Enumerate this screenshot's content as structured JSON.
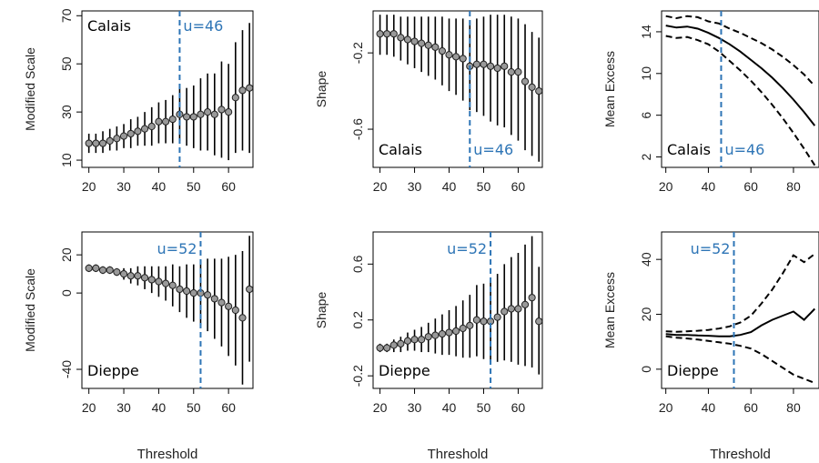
{
  "colors": {
    "threshold_line": "#2E75B6",
    "threshold_label": "#2E75B6",
    "marks": "#000000",
    "point_fill": "#999999"
  },
  "x_axis_label": "Threshold",
  "chart_data": [
    {
      "type": "scatter",
      "panel": "top-left",
      "site": "Calais",
      "ylabel": "Modified Scale",
      "xlim": [
        18,
        67
      ],
      "ylim": [
        7,
        72
      ],
      "xticks": [
        20,
        30,
        40,
        50,
        60
      ],
      "yticks": [
        10,
        30,
        50,
        70
      ],
      "threshold": 46,
      "threshold_label": "u=46",
      "x": [
        20,
        22,
        24,
        26,
        28,
        30,
        32,
        34,
        36,
        38,
        40,
        42,
        44,
        46,
        48,
        50,
        52,
        54,
        56,
        58,
        60,
        62,
        64,
        66
      ],
      "y": [
        17,
        17,
        17,
        18,
        19,
        20,
        21,
        22,
        23,
        24,
        26,
        26,
        27,
        29,
        28,
        28,
        29,
        30,
        29,
        31,
        30,
        36,
        39,
        40
      ],
      "lower": [
        13,
        13,
        13,
        14,
        14,
        15,
        15,
        16,
        16,
        16,
        17,
        17,
        17,
        18,
        16,
        15,
        14,
        14,
        12,
        11,
        10,
        13,
        14,
        13
      ],
      "upper": [
        21,
        21,
        22,
        23,
        24,
        25,
        27,
        28,
        30,
        32,
        34,
        35,
        37,
        40,
        40,
        41,
        44,
        46,
        46,
        51,
        50,
        59,
        64,
        67
      ]
    },
    {
      "type": "scatter",
      "panel": "top-middle",
      "site": "Calais",
      "ylabel": "Shape",
      "xlim": [
        18,
        67
      ],
      "ylim": [
        -0.8,
        0.02
      ],
      "xticks": [
        20,
        30,
        40,
        50,
        60
      ],
      "yticks": [
        -0.6,
        -0.2
      ],
      "threshold": 46,
      "threshold_label": "u=46",
      "x": [
        20,
        22,
        24,
        26,
        28,
        30,
        32,
        34,
        36,
        38,
        40,
        42,
        44,
        46,
        48,
        50,
        52,
        54,
        56,
        58,
        60,
        62,
        64,
        66
      ],
      "y": [
        -0.1,
        -0.1,
        -0.1,
        -0.12,
        -0.13,
        -0.14,
        -0.15,
        -0.16,
        -0.17,
        -0.19,
        -0.21,
        -0.22,
        -0.23,
        -0.27,
        -0.26,
        -0.26,
        -0.27,
        -0.28,
        -0.27,
        -0.3,
        -0.3,
        -0.35,
        -0.38,
        -0.4
      ],
      "lower": [
        -0.21,
        -0.21,
        -0.22,
        -0.24,
        -0.26,
        -0.28,
        -0.3,
        -0.32,
        -0.34,
        -0.37,
        -0.4,
        -0.42,
        -0.45,
        -0.5,
        -0.51,
        -0.53,
        -0.56,
        -0.58,
        -0.59,
        -0.63,
        -0.66,
        -0.71,
        -0.74,
        -0.77
      ],
      "upper": [
        0.0,
        0.0,
        0.0,
        -0.01,
        -0.01,
        -0.01,
        -0.01,
        -0.01,
        -0.01,
        -0.01,
        -0.02,
        -0.02,
        -0.02,
        -0.03,
        -0.02,
        -0.01,
        0.0,
        0.0,
        0.0,
        -0.01,
        -0.02,
        -0.05,
        -0.09,
        -0.12
      ]
    },
    {
      "type": "line",
      "panel": "top-right",
      "site": "Calais",
      "ylabel": "Mean Excess",
      "xlim": [
        18,
        92
      ],
      "ylim": [
        1,
        16
      ],
      "xticks": [
        20,
        40,
        60,
        80
      ],
      "yticks": [
        2,
        6,
        10,
        14
      ],
      "threshold": 46,
      "threshold_label": "u=46",
      "series": [
        {
          "style": "dashed",
          "x": [
            20,
            25,
            30,
            35,
            40,
            45,
            50,
            55,
            60,
            65,
            70,
            75,
            80,
            85,
            90
          ],
          "values": [
            15.5,
            15.3,
            15.5,
            15.4,
            15.0,
            14.8,
            14.3,
            13.9,
            13.4,
            12.9,
            12.3,
            11.6,
            10.8,
            9.9,
            8.8
          ]
        },
        {
          "style": "solid",
          "x": [
            20,
            25,
            30,
            35,
            40,
            45,
            50,
            55,
            60,
            65,
            70,
            75,
            80,
            85,
            90
          ],
          "values": [
            14.6,
            14.4,
            14.5,
            14.3,
            13.9,
            13.4,
            12.8,
            12.1,
            11.3,
            10.5,
            9.6,
            8.6,
            7.5,
            6.3,
            5.0
          ]
        },
        {
          "style": "dashed",
          "x": [
            20,
            25,
            30,
            35,
            40,
            45,
            50,
            55,
            60,
            65,
            70,
            75,
            80,
            85,
            90
          ],
          "values": [
            13.6,
            13.4,
            13.5,
            13.2,
            12.8,
            12.1,
            11.2,
            10.3,
            9.3,
            8.2,
            7.0,
            5.7,
            4.3,
            2.8,
            1.2
          ]
        }
      ]
    },
    {
      "type": "scatter",
      "panel": "bottom-left",
      "site": "Dieppe",
      "ylabel": "Modified Scale",
      "xlim": [
        18,
        67
      ],
      "ylim": [
        -50,
        32
      ],
      "xticks": [
        20,
        30,
        40,
        50,
        60
      ],
      "yticks": [
        -40,
        0,
        20
      ],
      "threshold": 52,
      "threshold_label": "u=52",
      "x": [
        20,
        22,
        24,
        26,
        28,
        30,
        32,
        34,
        36,
        38,
        40,
        42,
        44,
        46,
        48,
        50,
        52,
        54,
        56,
        58,
        60,
        62,
        64,
        66
      ],
      "y": [
        13,
        13,
        12,
        12,
        11,
        10,
        9,
        9,
        8,
        7,
        6,
        5,
        4,
        2,
        1,
        0,
        0,
        -1,
        -3,
        -5,
        -7,
        -9,
        -13,
        2
      ],
      "lower": [
        11,
        11,
        10,
        10,
        9,
        7,
        5,
        4,
        2,
        0,
        -2,
        -4,
        -7,
        -10,
        -13,
        -15,
        -17,
        -20,
        -24,
        -28,
        -33,
        -38,
        -48,
        -36
      ],
      "upper": [
        15,
        15,
        14,
        14,
        13,
        13,
        13,
        14,
        14,
        14,
        14,
        14,
        15,
        14,
        15,
        15,
        17,
        18,
        18,
        18,
        19,
        20,
        22,
        30
      ]
    },
    {
      "type": "scatter",
      "panel": "bottom-middle",
      "site": "Dieppe",
      "ylabel": "Shape",
      "xlim": [
        18,
        67
      ],
      "ylim": [
        -0.29,
        0.83
      ],
      "xticks": [
        20,
        30,
        40,
        50,
        60
      ],
      "yticks": [
        -0.2,
        0.2,
        0.6
      ],
      "threshold": 52,
      "threshold_label": "u=52",
      "x": [
        20,
        22,
        24,
        26,
        28,
        30,
        32,
        34,
        36,
        38,
        40,
        42,
        44,
        46,
        48,
        50,
        52,
        54,
        56,
        58,
        60,
        62,
        64,
        66
      ],
      "y": [
        0.0,
        0.0,
        0.02,
        0.03,
        0.05,
        0.06,
        0.06,
        0.08,
        0.09,
        0.1,
        0.11,
        0.12,
        0.14,
        0.16,
        0.2,
        0.19,
        0.19,
        0.22,
        0.26,
        0.28,
        0.28,
        0.31,
        0.36,
        0.19
      ],
      "lower": [
        -0.03,
        -0.03,
        -0.03,
        -0.03,
        -0.02,
        -0.02,
        -0.03,
        -0.03,
        -0.04,
        -0.05,
        -0.05,
        -0.06,
        -0.07,
        -0.07,
        -0.06,
        -0.08,
        -0.1,
        -0.1,
        -0.09,
        -0.1,
        -0.12,
        -0.13,
        -0.14,
        -0.19
      ],
      "upper": [
        0.03,
        0.03,
        0.06,
        0.08,
        0.11,
        0.13,
        0.15,
        0.18,
        0.21,
        0.24,
        0.27,
        0.3,
        0.34,
        0.38,
        0.45,
        0.46,
        0.48,
        0.53,
        0.6,
        0.65,
        0.68,
        0.74,
        0.8,
        0.58
      ]
    },
    {
      "type": "line",
      "panel": "bottom-right",
      "site": "Dieppe",
      "ylabel": "Mean Excess",
      "xlim": [
        18,
        92
      ],
      "ylim": [
        -7,
        50
      ],
      "xticks": [
        20,
        40,
        60,
        80
      ],
      "yticks": [
        0,
        20,
        40
      ],
      "threshold": 52,
      "threshold_label": "u=52",
      "series": [
        {
          "style": "dashed",
          "x": [
            20,
            25,
            30,
            35,
            40,
            45,
            50,
            55,
            60,
            65,
            70,
            75,
            80,
            85,
            90
          ],
          "values": [
            13.8,
            13.6,
            13.8,
            14.0,
            14.3,
            14.8,
            15.6,
            17.0,
            19.5,
            24.0,
            29.0,
            35.0,
            41.5,
            39.0,
            42.0
          ]
        },
        {
          "style": "solid",
          "x": [
            20,
            25,
            30,
            35,
            40,
            45,
            50,
            55,
            60,
            65,
            70,
            75,
            80,
            85,
            90
          ],
          "values": [
            12.8,
            12.5,
            12.5,
            12.3,
            12.2,
            12.0,
            12.0,
            12.5,
            13.5,
            16.0,
            18.0,
            19.5,
            21.0,
            18.0,
            22.0
          ]
        },
        {
          "style": "dashed",
          "x": [
            20,
            25,
            30,
            35,
            40,
            45,
            50,
            55,
            60,
            65,
            70,
            75,
            80,
            85,
            90
          ],
          "values": [
            12.0,
            11.5,
            11.2,
            10.8,
            10.3,
            9.8,
            9.3,
            8.5,
            7.5,
            5.5,
            3.0,
            0.5,
            -2.0,
            -3.5,
            -5.0
          ]
        }
      ]
    }
  ]
}
